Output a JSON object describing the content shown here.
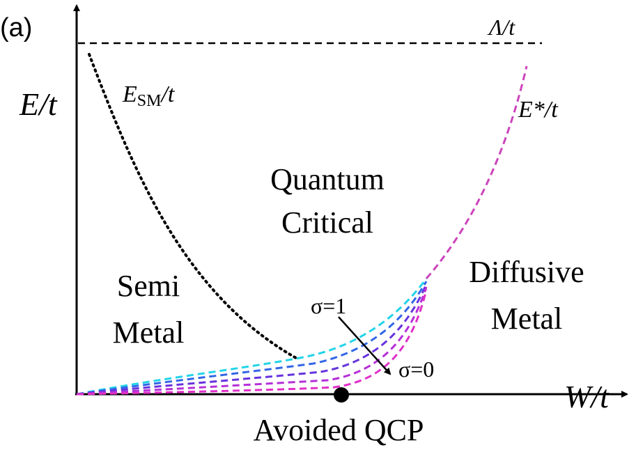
{
  "panel_label": "(a)",
  "y_axis_label": "E/t",
  "x_axis_label": "W/t",
  "cutoff_label": "Λ/t",
  "semimetal_energy_label": {
    "main": "E",
    "sub": "SM",
    "tail": "/t"
  },
  "crossover_energy_label": "E*/t",
  "regions": {
    "quantum_critical": [
      "Quantum",
      "Critical"
    ],
    "semi_metal": [
      "Semi",
      "Metal"
    ],
    "diffusive_metal": [
      "Diffusive",
      "Metal"
    ]
  },
  "sigma_start_label": "σ=1",
  "sigma_end_label": "σ=0",
  "qcp_label": "Avoided QCP",
  "sigma_curve_colors": [
    "#22d4e8",
    "#3366e6",
    "#6633dd",
    "#b52fd8",
    "#e030c8"
  ],
  "crossover_color": "#cc44bb"
}
